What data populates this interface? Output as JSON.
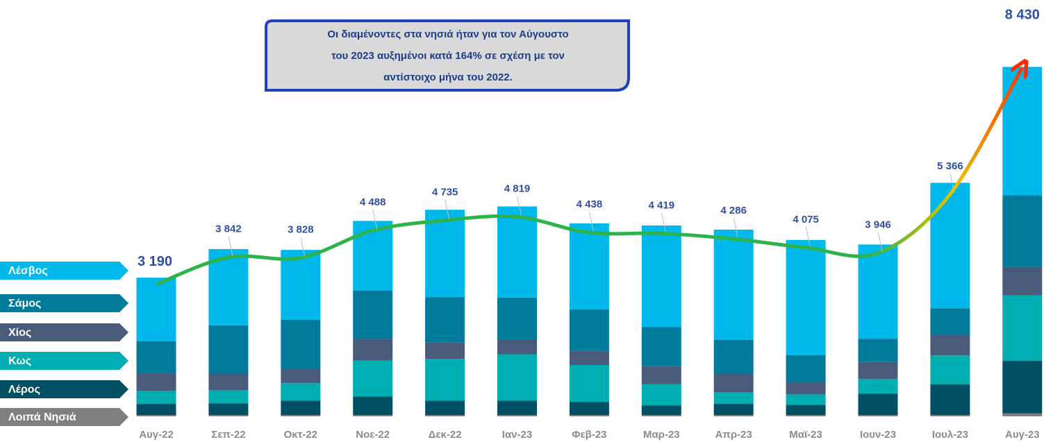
{
  "chart_data": {
    "type": "bar",
    "stacked": true,
    "annotation": [
      "Οι διαμένοντες στα νησιά ήταν για τον Αύγουστο",
      "του 2023 αυξημένοι κατά 164% σε σχέση με τον",
      "αντίστοιχο μήνα του 2022."
    ],
    "categories": [
      "Αυγ-22",
      "Σεπ-22",
      "Οκτ-22",
      "Νοε-22",
      "Δεκ-22",
      "Ιαν-23",
      "Φεβ-23",
      "Μαρ-23",
      "Απρ-23",
      "Μαϊ-23",
      "Ιουν-23",
      "Ιουλ-23",
      "Αυγ-23"
    ],
    "ylim": [
      0,
      9000
    ],
    "series": [
      {
        "name": "Λοιπά Νησιά",
        "color": "#7f7f7f",
        "values": [
          30,
          30,
          30,
          30,
          30,
          30,
          30,
          30,
          30,
          30,
          30,
          30,
          70
        ]
      },
      {
        "name": "Λέρος",
        "color": "#004f63",
        "values": [
          270,
          280,
          350,
          450,
          350,
          350,
          320,
          230,
          270,
          250,
          520,
          740,
          1270
        ]
      },
      {
        "name": "Κως",
        "color": "#00adb0",
        "values": [
          320,
          320,
          420,
          870,
          1010,
          1120,
          890,
          520,
          280,
          250,
          350,
          700,
          1580
        ]
      },
      {
        "name": "Χίος",
        "color": "#4a5a7a",
        "values": [
          420,
          400,
          340,
          520,
          400,
          350,
          350,
          440,
          450,
          300,
          420,
          500,
          690
        ]
      },
      {
        "name": "Σάμος",
        "color": "#007a9a",
        "values": [
          770,
          1170,
          1190,
          1170,
          1090,
          1020,
          990,
          940,
          820,
          650,
          550,
          640,
          1730
        ]
      },
      {
        "name": "Λέσβος",
        "color": "#00b8ea",
        "values": [
          1540,
          1840,
          1690,
          1680,
          2110,
          2200,
          2080,
          2450,
          2660,
          2780,
          2280,
          3030,
          3100
        ]
      }
    ],
    "totals": {
      "type": "line",
      "color": "#2db34a",
      "values": [
        3190,
        3842,
        3828,
        4488,
        4735,
        4819,
        4438,
        4419,
        4286,
        4075,
        3946,
        5366,
        8430
      ],
      "value_labels": [
        "3 190",
        "3 842",
        "3 828",
        "4 488",
        "4 735",
        "4 819",
        "4 438",
        "4 419",
        "4 286",
        "4 075",
        "3 946",
        "5 366",
        "8 430"
      ]
    }
  }
}
